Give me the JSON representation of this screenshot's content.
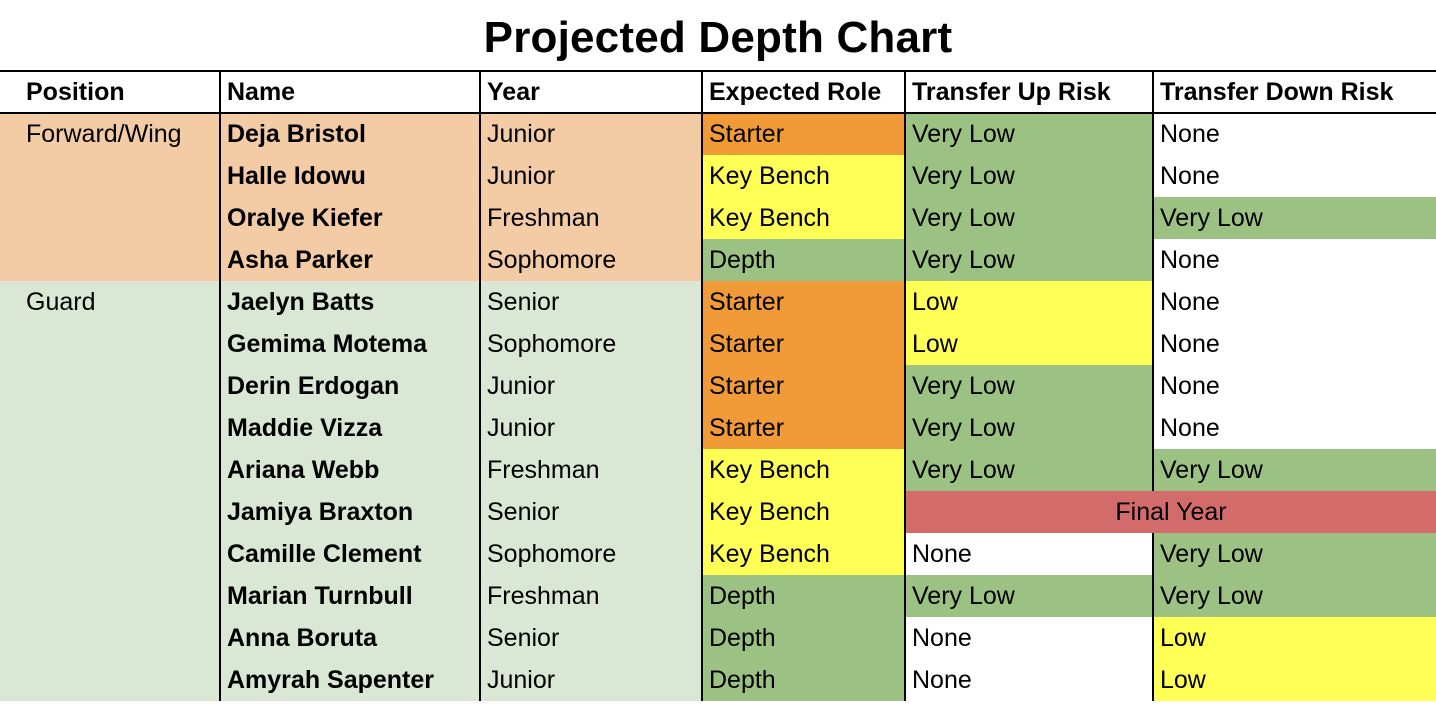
{
  "title": "Projected Depth Chart",
  "colors": {
    "forward_group_bg": "#f3cba5",
    "guard_group_bg": "#d9e7d4",
    "starter": "#f19b38",
    "key_bench": "#ffff55",
    "depth": "#9bc283",
    "very_low": "#9bc283",
    "low": "#ffff55",
    "none": "#ffffff",
    "final_year": "#d46b6b"
  },
  "headers": {
    "position": "Position",
    "name": "Name",
    "year": "Year",
    "role": "Expected Role",
    "up": "Transfer Up Risk",
    "down": "Transfer Down Risk"
  },
  "rows": [
    {
      "position": "Forward/Wing",
      "name": "Deja Bristol",
      "year": "Junior",
      "role": "Starter",
      "up": "Very Low",
      "down": "None"
    },
    {
      "position": "",
      "name": "Halle Idowu",
      "year": "Junior",
      "role": "Key Bench",
      "up": "Very Low",
      "down": "None"
    },
    {
      "position": "",
      "name": "Oralye Kiefer",
      "year": "Freshman",
      "role": "Key Bench",
      "up": "Very Low",
      "down": "Very Low"
    },
    {
      "position": "",
      "name": "Asha Parker",
      "year": "Sophomore",
      "role": "Depth",
      "up": "Very Low",
      "down": "None"
    },
    {
      "position": "Guard",
      "name": "Jaelyn Batts",
      "year": "Senior",
      "role": "Starter",
      "up": "Low",
      "down": "None"
    },
    {
      "position": "",
      "name": "Gemima Motema",
      "year": "Sophomore",
      "role": "Starter",
      "up": "Low",
      "down": "None"
    },
    {
      "position": "",
      "name": "Derin Erdogan",
      "year": "Junior",
      "role": "Starter",
      "up": "Very Low",
      "down": "None"
    },
    {
      "position": "",
      "name": "Maddie Vizza",
      "year": "Junior",
      "role": "Starter",
      "up": "Very Low",
      "down": "None"
    },
    {
      "position": "",
      "name": "Ariana Webb",
      "year": "Freshman",
      "role": "Key Bench",
      "up": "Very Low",
      "down": "Very Low"
    },
    {
      "position": "",
      "name": "Jamiya Braxton",
      "year": "Senior",
      "role": "Key Bench",
      "merged": "Final Year"
    },
    {
      "position": "",
      "name": "Camille Clement",
      "year": "Sophomore",
      "role": "Key Bench",
      "up": "None",
      "down": "Very Low"
    },
    {
      "position": "",
      "name": "Marian Turnbull",
      "year": "Freshman",
      "role": "Depth",
      "up": "Very Low",
      "down": "Very Low"
    },
    {
      "position": "",
      "name": "Anna Boruta",
      "year": "Senior",
      "role": "Depth",
      "up": "None",
      "down": "Low"
    },
    {
      "position": "",
      "name": "Amyrah Sapenter",
      "year": "Junior",
      "role": "Depth",
      "up": "None",
      "down": "Low"
    }
  ]
}
